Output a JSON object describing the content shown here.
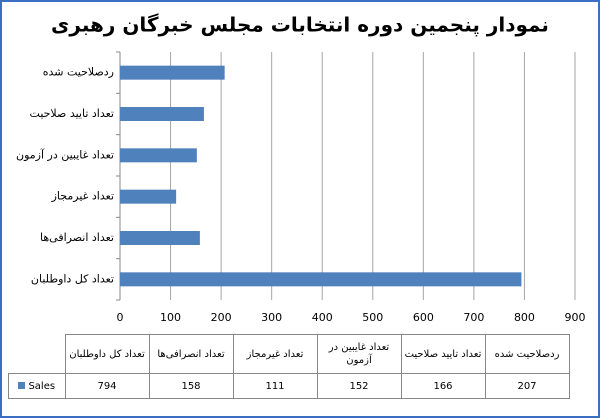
{
  "chart_data": {
    "type": "bar",
    "orientation": "horizontal",
    "title": "نمودار پنجمین دوره انتخابات مجلس خبرگان رهبری",
    "categories": [
      "تعداد کل داوطلبان",
      "تعداد انصرافی‌ها",
      "تعداد غیرمجاز",
      "تعداد غایبین در آزمون",
      "تعداد تایید صلاحیت",
      "ردصلاحیت شده"
    ],
    "series": [
      {
        "name": "Sales",
        "color": "#4f81bd",
        "values": [
          794,
          158,
          111,
          152,
          166,
          207
        ]
      }
    ],
    "xlim": [
      0,
      900
    ],
    "xticks": [
      0,
      100,
      200,
      300,
      400,
      500,
      600,
      700,
      800,
      900
    ],
    "grid": true
  }
}
